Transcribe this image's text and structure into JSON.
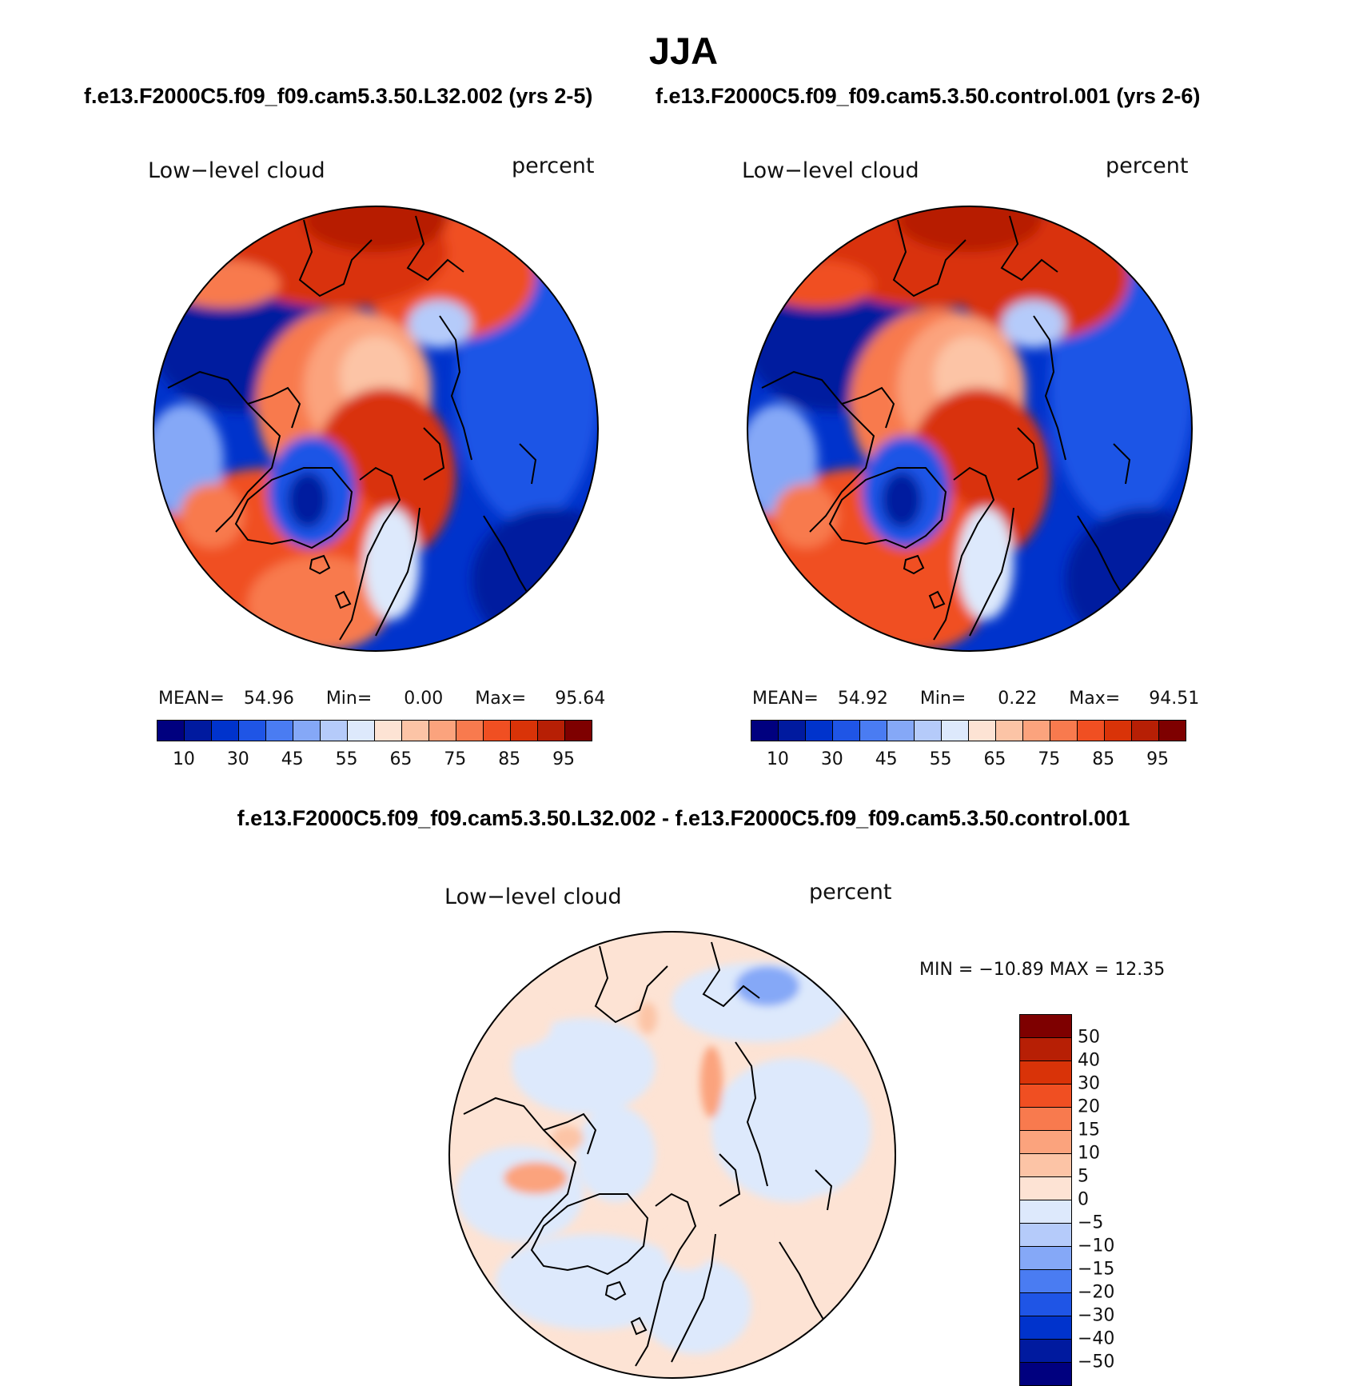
{
  "title": "JJA",
  "panels": {
    "left": {
      "case_title": "f.e13.F2000C5.f09_f09.cam5.3.50.L32.002 (yrs 2-5)",
      "variable": "Low−level cloud",
      "units": "percent",
      "stats": {
        "mean_label": "MEAN=",
        "mean": "54.96",
        "min_label": "Min=",
        "min": "0.00",
        "max_label": "Max=",
        "max": "95.64"
      },
      "colorbar_ticks": [
        "10",
        "30",
        "45",
        "55",
        "65",
        "75",
        "85",
        "95"
      ]
    },
    "right": {
      "case_title": "f.e13.F2000C5.f09_f09.cam5.3.50.control.001 (yrs 2-6)",
      "variable": "Low−level cloud",
      "units": "percent",
      "stats": {
        "mean_label": "MEAN=",
        "mean": "54.92",
        "min_label": "Min=",
        "min": "0.22",
        "max_label": "Max=",
        "max": "94.51"
      },
      "colorbar_ticks": [
        "10",
        "30",
        "45",
        "55",
        "65",
        "75",
        "85",
        "95"
      ]
    },
    "diff": {
      "case_title": "f.e13.F2000C5.f09_f09.cam5.3.50.L32.002 - f.e13.F2000C5.f09_f09.cam5.3.50.control.001",
      "variable": "Low−level cloud",
      "units": "percent",
      "minmax": "MIN = −10.89 MAX =   12.35",
      "colorbar_ticks": [
        "50",
        "40",
        "30",
        "20",
        "15",
        "10",
        "5",
        "0",
        "−5",
        "−10",
        "−15",
        "−20",
        "−30",
        "−40",
        "−50"
      ]
    }
  },
  "colors": {
    "abs_scale": [
      "#00007f",
      "#001a9f",
      "#0033cc",
      "#1f55e6",
      "#4a7cf2",
      "#85a8f7",
      "#b5cbfa",
      "#dde9fc",
      "#fde3d4",
      "#fcc4a6",
      "#fba37d",
      "#f87a4e",
      "#f04f22",
      "#d93308",
      "#b71f05",
      "#7e0000"
    ],
    "diff_scale": [
      "#7e0000",
      "#b71f05",
      "#d93308",
      "#f04f22",
      "#f87a4e",
      "#fba37d",
      "#fcc4a6",
      "#fde3d4",
      "#dde9fc",
      "#b5cbfa",
      "#85a8f7",
      "#4a7cf2",
      "#1f55e6",
      "#0033cc",
      "#001a9f",
      "#00007f"
    ]
  }
}
